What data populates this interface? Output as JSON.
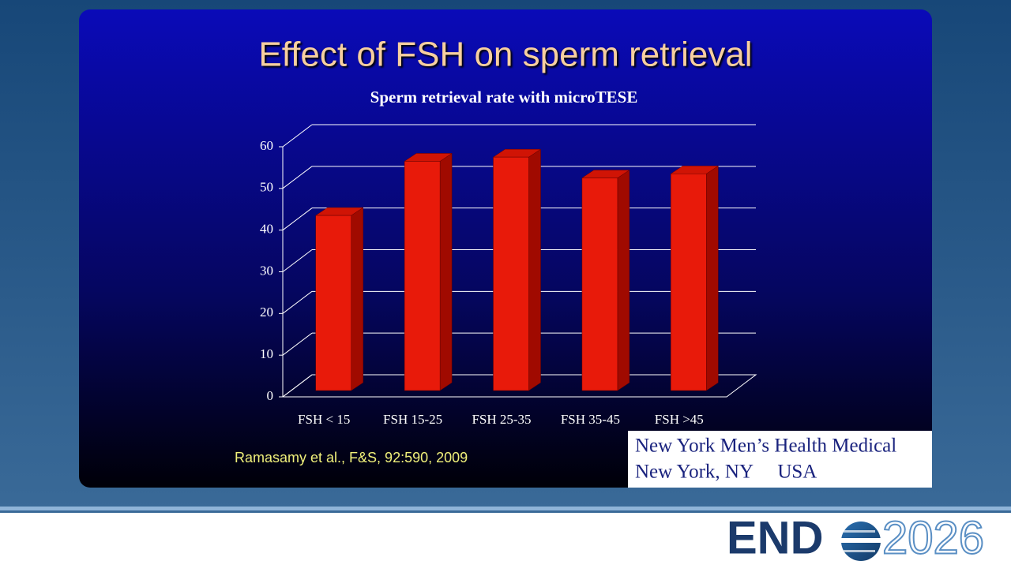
{
  "chart_data": {
    "type": "bar3d",
    "title": "Effect of FSH on sperm retrieval",
    "subtitle": "Sperm retrieval rate with microTESE",
    "categories": [
      "FSH < 15",
      "FSH 15-25",
      "FSH 25-35",
      "FSH 35-45",
      "FSH >45"
    ],
    "values": [
      42,
      55,
      56,
      51,
      52
    ],
    "color": "#e81a0a",
    "ylim": [
      0,
      60
    ],
    "yticks": [
      0,
      10,
      20,
      30,
      40,
      50,
      60
    ],
    "grid": true
  },
  "citation": "Ramasamy et al., F&S, 92:590, 2009",
  "affiliation": [
    "New York Men’s Health Medical",
    "New York, NY     USA"
  ],
  "logo": {
    "left": "END",
    "right": "2026"
  }
}
